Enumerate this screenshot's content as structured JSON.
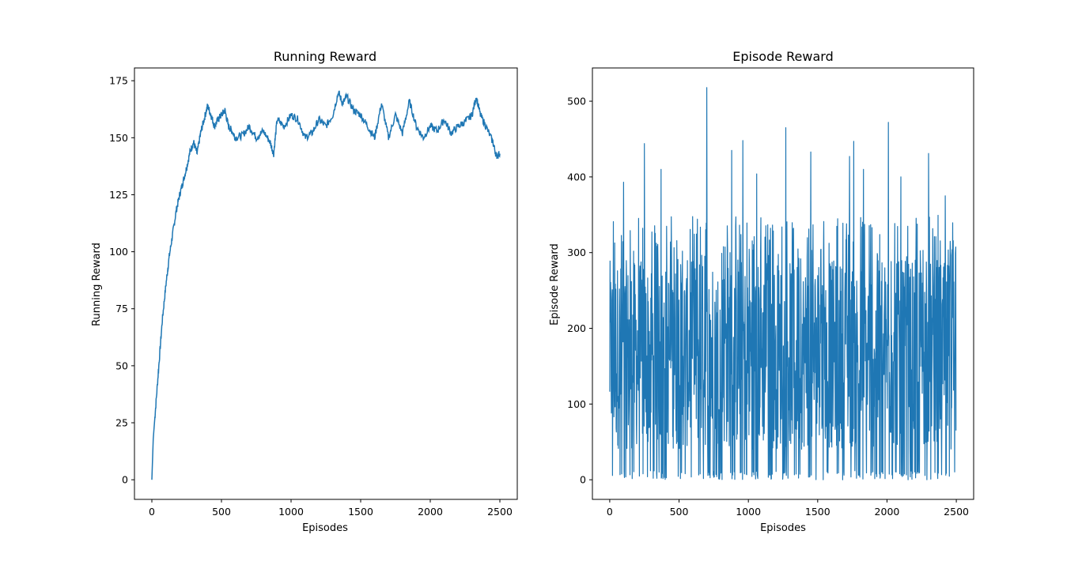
{
  "chart_data": [
    {
      "type": "line",
      "title": "Running Reward",
      "xlabel": "Episodes",
      "ylabel": "Running Reward",
      "xlim": [
        -125,
        2625
      ],
      "ylim": [
        -8.6,
        180.6
      ],
      "xticks": [
        "0",
        "500",
        "1000",
        "1500",
        "2000",
        "2500"
      ],
      "yticks": [
        "0",
        "25",
        "50",
        "75",
        "100",
        "125",
        "150",
        "175"
      ],
      "grid": false,
      "legend": "none",
      "color": "#1f77b4",
      "series": [
        {
          "x": [
            0,
            10,
            25,
            50,
            75,
            100,
            125,
            150,
            175,
            200,
            225,
            250,
            275,
            300,
            325,
            350,
            375,
            400,
            425,
            450,
            475,
            500,
            525,
            550,
            575,
            600,
            650,
            700,
            750,
            800,
            850,
            875,
            900,
            950,
            1000,
            1050,
            1100,
            1150,
            1200,
            1250,
            1300,
            1340,
            1370,
            1400,
            1450,
            1500,
            1550,
            1600,
            1650,
            1700,
            1750,
            1800,
            1850,
            1900,
            1950,
            2000,
            2050,
            2100,
            2150,
            2200,
            2250,
            2300,
            2330,
            2360,
            2400,
            2450,
            2475,
            2500
          ],
          "y": [
            0,
            18,
            30,
            50,
            70,
            85,
            98,
            108,
            118,
            125,
            131,
            137,
            144,
            148,
            143,
            152,
            158,
            164,
            160,
            155,
            158,
            160,
            162,
            155,
            153,
            150,
            151,
            155,
            150,
            153,
            148,
            143,
            158,
            155,
            160,
            158,
            150,
            152,
            158,
            155,
            160,
            170,
            165,
            168,
            162,
            160,
            155,
            150,
            165,
            150,
            160,
            152,
            166,
            155,
            150,
            155,
            153,
            158,
            152,
            155,
            157,
            160,
            168,
            160,
            155,
            148,
            142,
            143
          ]
        }
      ]
    },
    {
      "type": "line",
      "title": "Episode Reward",
      "xlabel": "Episodes",
      "ylabel": "Episode Reward",
      "xlim": [
        -125,
        2625
      ],
      "ylim": [
        -25.9,
        543.9
      ],
      "xticks": [
        "0",
        "500",
        "1000",
        "1500",
        "2000",
        "2500"
      ],
      "yticks": [
        "0",
        "100",
        "200",
        "300",
        "400",
        "500"
      ],
      "grid": false,
      "legend": "none",
      "color": "#1f77b4",
      "series": [
        {
          "x_start": 0,
          "x_end": 2499,
          "y_range": [
            0,
            518
          ],
          "peaks": [
            [
              100,
              393
            ],
            [
              250,
              444
            ],
            [
              370,
              410
            ],
            [
              700,
              518
            ],
            [
              880,
              435
            ],
            [
              960,
              448
            ],
            [
              1060,
              404
            ],
            [
              1270,
              465
            ],
            [
              1450,
              433
            ],
            [
              1730,
              427
            ],
            [
              1760,
              447
            ],
            [
              1830,
              410
            ],
            [
              2010,
              472
            ],
            [
              2100,
              400
            ],
            [
              2300,
              431
            ],
            [
              2420,
              375
            ]
          ],
          "end_value": 65
        }
      ]
    }
  ]
}
